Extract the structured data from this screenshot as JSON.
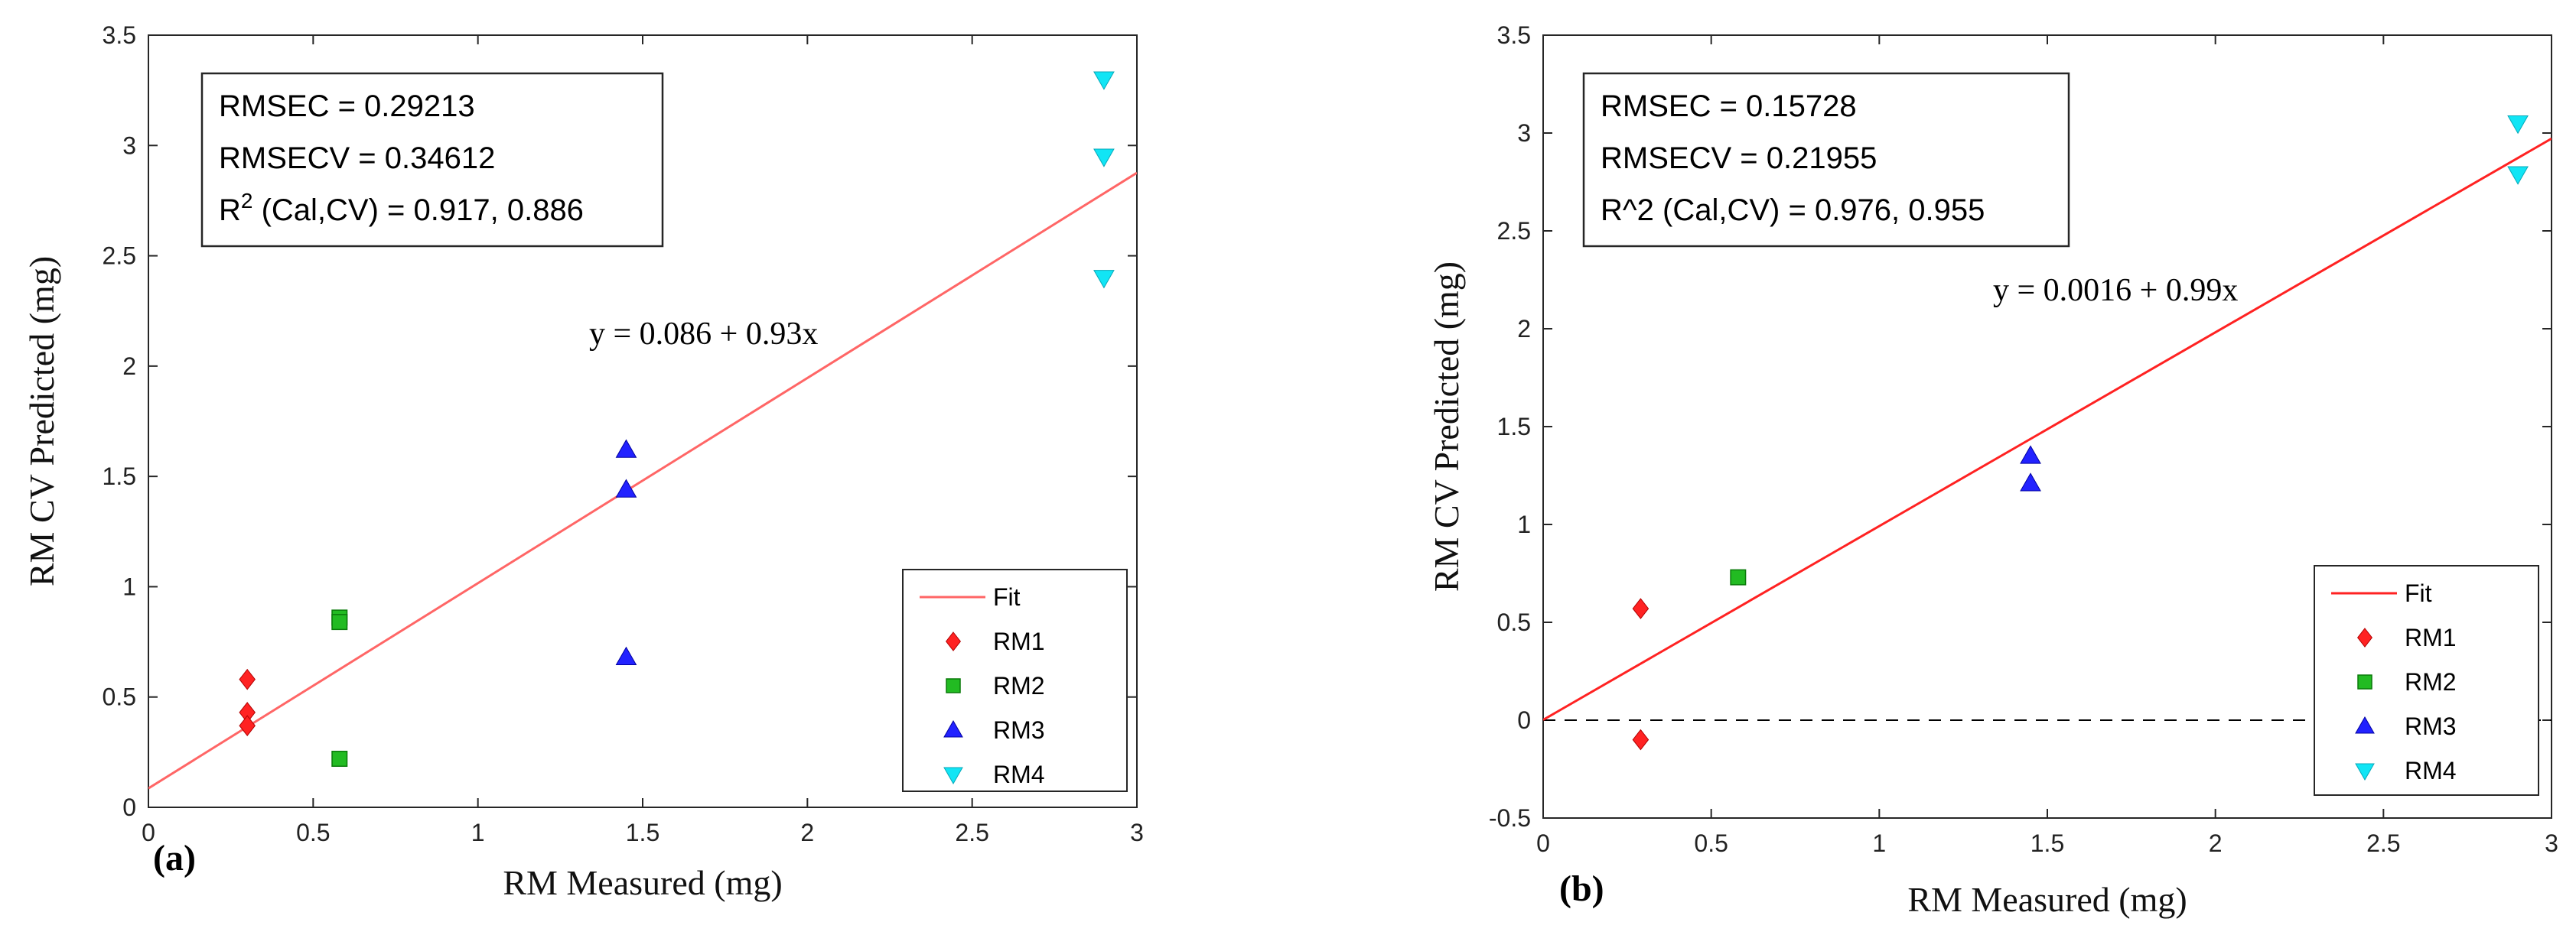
{
  "chart_data": [
    {
      "panel_label": "(a)",
      "type": "scatter",
      "xlabel": "RM Measured (mg)",
      "ylabel": "RM CV Predicted (mg)",
      "xlim": [
        0,
        3
      ],
      "ylim": [
        0,
        3.5
      ],
      "xticks": [
        "0",
        "0.5",
        "1",
        "1.5",
        "2",
        "2.5",
        "3"
      ],
      "yticks": [
        "0",
        "0.5",
        "1",
        "1.5",
        "2",
        "2.5",
        "3",
        "3.5"
      ],
      "stats": {
        "line1": "RMSEC = 0.29213",
        "line2": "RMSECV = 0.34612",
        "line3_main": "R",
        "line3_sup": "2",
        "line3_rest": " (Cal,CV) = 0.917, 0.886"
      },
      "equation": "y = 0.086 + 0.93x",
      "fit": {
        "name": "Fit",
        "intercept": 0.086,
        "slope": 0.93,
        "color": "#ff6666"
      },
      "zero_line": false,
      "legend_position": "bottom-right",
      "series": [
        {
          "name": "RM1",
          "marker": "diamond",
          "color": "#ff2222",
          "points": [
            [
              0.3,
              0.58
            ],
            [
              0.3,
              0.43
            ],
            [
              0.3,
              0.37
            ]
          ]
        },
        {
          "name": "RM2",
          "marker": "square",
          "color": "#22bb22",
          "points": [
            [
              0.58,
              0.86
            ],
            [
              0.58,
              0.84
            ],
            [
              0.58,
              0.22
            ]
          ]
        },
        {
          "name": "RM3",
          "marker": "triangle-up",
          "color": "#2222ff",
          "points": [
            [
              1.45,
              1.62
            ],
            [
              1.45,
              1.44
            ],
            [
              1.45,
              0.68
            ]
          ]
        },
        {
          "name": "RM4",
          "marker": "triangle-down",
          "color": "#11e5f5",
          "points": [
            [
              2.9,
              3.3
            ],
            [
              2.9,
              2.95
            ],
            [
              2.9,
              2.4
            ]
          ]
        }
      ]
    },
    {
      "panel_label": "(b)",
      "type": "scatter",
      "xlabel": "RM Measured (mg)",
      "ylabel": "RM CV Predicted (mg)",
      "xlim": [
        0,
        3
      ],
      "ylim": [
        -0.5,
        3.5
      ],
      "xticks": [
        "0",
        "0.5",
        "1",
        "1.5",
        "2",
        "2.5",
        "3"
      ],
      "yticks": [
        "-0.5",
        "0",
        "0.5",
        "1",
        "1.5",
        "2",
        "2.5",
        "3",
        "3.5"
      ],
      "stats": {
        "line1": "RMSEC = 0.15728",
        "line2": "RMSECV = 0.21955",
        "line3_main": "R^2 (Cal,CV) = 0.976, 0.955",
        "line3_sup": "",
        "line3_rest": ""
      },
      "equation": "y = 0.0016 + 0.99x",
      "fit": {
        "name": "Fit",
        "intercept": 0.0016,
        "slope": 0.99,
        "color": "#ff2222"
      },
      "zero_line": true,
      "legend_position": "bottom-right",
      "series": [
        {
          "name": "RM1",
          "marker": "diamond",
          "color": "#ff2222",
          "points": [
            [
              0.29,
              0.57
            ],
            [
              0.29,
              -0.1
            ]
          ]
        },
        {
          "name": "RM2",
          "marker": "square",
          "color": "#22bb22",
          "points": [
            [
              0.58,
              0.73
            ]
          ]
        },
        {
          "name": "RM3",
          "marker": "triangle-up",
          "color": "#2222ff",
          "points": [
            [
              1.45,
              1.35
            ],
            [
              1.45,
              1.21
            ]
          ]
        },
        {
          "name": "RM4",
          "marker": "triangle-down",
          "color": "#11e5f5",
          "points": [
            [
              2.9,
              3.05
            ],
            [
              2.9,
              2.79
            ]
          ]
        }
      ]
    }
  ]
}
